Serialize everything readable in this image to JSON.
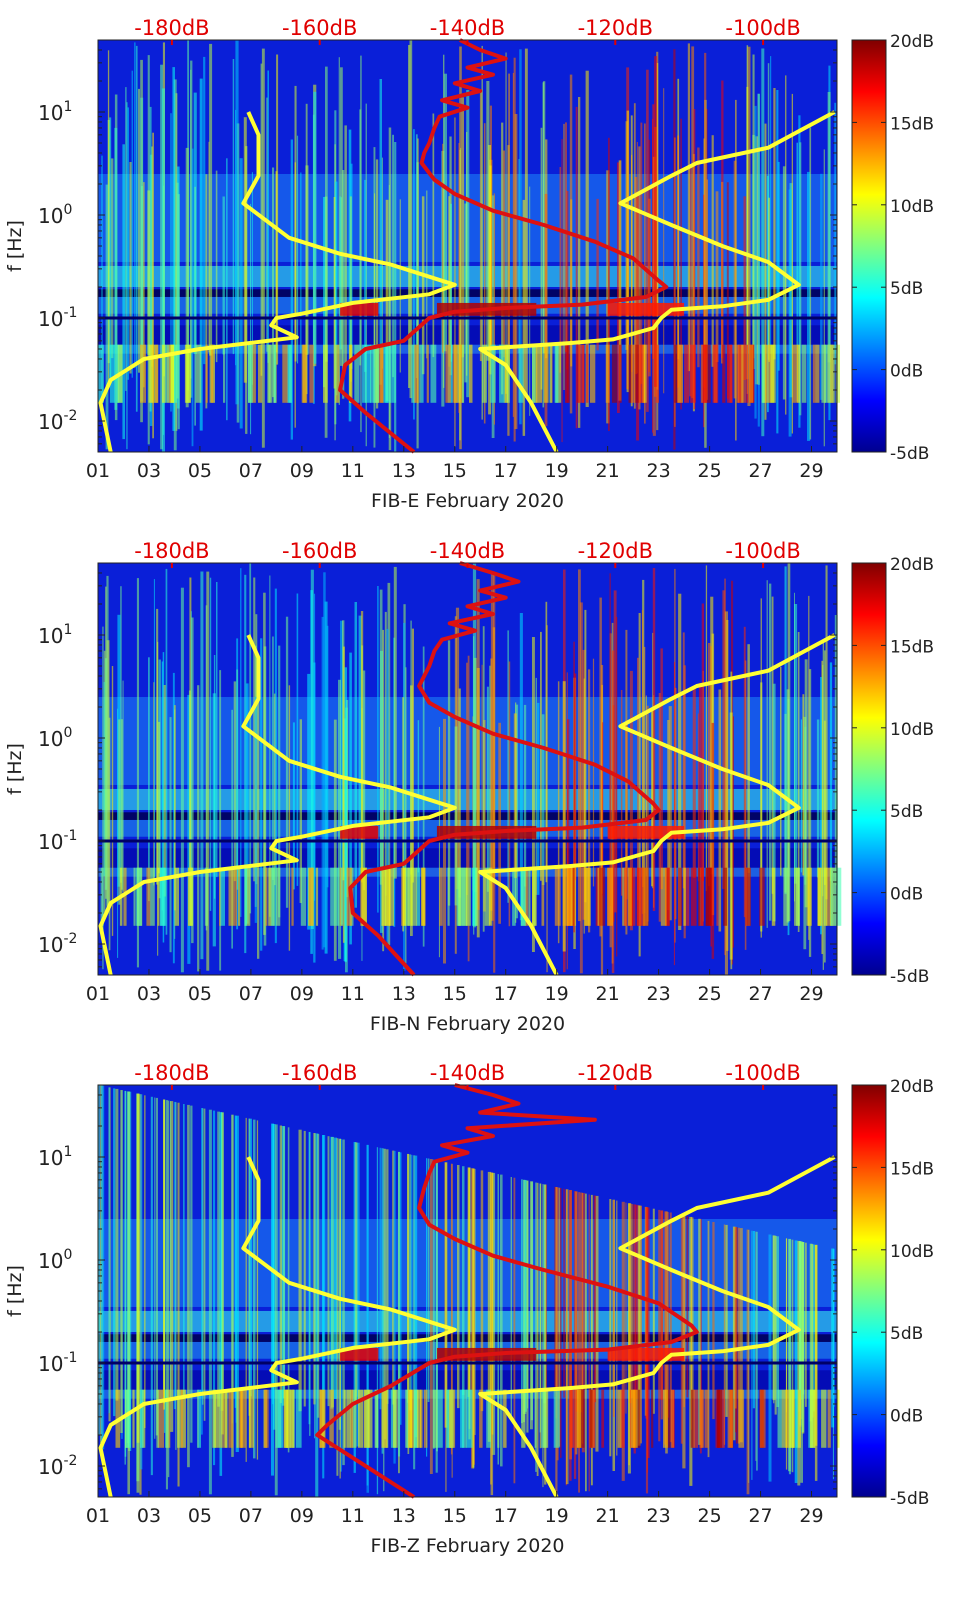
{
  "chart_data": [
    {
      "type": "heatmap",
      "title": "",
      "xlabel": "FIB-E February 2020",
      "ylabel": "f [Hz]",
      "x_ticks": [
        "01",
        "03",
        "05",
        "07",
        "09",
        "11",
        "13",
        "15",
        "17",
        "19",
        "21",
        "23",
        "25",
        "27",
        "29"
      ],
      "xlim": [
        1,
        30
      ],
      "y_scale": "log",
      "ylim": [
        0.005,
        50
      ],
      "y_ticks": [
        {
          "value": 0.01,
          "base": "10",
          "exp": "-2"
        },
        {
          "value": 0.1,
          "base": "10",
          "exp": "-1"
        },
        {
          "value": 1,
          "base": "10",
          "exp": "0"
        },
        {
          "value": 10,
          "base": "10",
          "exp": "1"
        }
      ],
      "colorbar": {
        "ticks": [
          "20dB",
          "15dB",
          "10dB",
          "5dB",
          "0dB",
          "-5dB"
        ],
        "range": [
          -5,
          20
        ],
        "colormap": "jet"
      },
      "top_axis": {
        "color": "#e00000",
        "ticks": [
          "-180dB",
          "-160dB",
          "-140dB",
          "-120dB",
          "-100dB"
        ],
        "range": [
          -190,
          -90
        ]
      },
      "series": [
        {
          "color": "#ffff33",
          "points": [
            [
              6.9,
              10
            ],
            [
              7.3,
              6
            ],
            [
              7.3,
              2.4
            ],
            [
              6.7,
              1.3
            ],
            [
              8.5,
              0.6
            ],
            [
              10.5,
              0.42
            ],
            [
              12.5,
              0.33
            ],
            [
              15,
              0.21
            ],
            [
              14,
              0.17
            ],
            [
              11,
              0.14
            ],
            [
              9,
              0.11
            ],
            [
              8,
              0.1
            ],
            [
              7.8,
              0.085
            ],
            [
              8.8,
              0.065
            ],
            [
              5,
              0.05
            ],
            [
              2.8,
              0.04
            ],
            [
              1.5,
              0.025
            ],
            [
              1.1,
              0.015
            ],
            [
              1.5,
              0.005
            ]
          ]
        },
        {
          "color": "#ffff33",
          "points": [
            [
              29.9,
              10
            ],
            [
              27.3,
              4.5
            ],
            [
              24.5,
              3.2
            ],
            [
              23.5,
              2.4
            ],
            [
              21.5,
              1.3
            ],
            [
              23.5,
              0.8
            ],
            [
              25.5,
              0.5
            ],
            [
              27.3,
              0.35
            ],
            [
              28.5,
              0.21
            ],
            [
              27.3,
              0.15
            ],
            [
              25.5,
              0.13
            ],
            [
              23.5,
              0.12
            ],
            [
              23.1,
              0.1
            ],
            [
              22.8,
              0.08
            ],
            [
              21.2,
              0.062
            ],
            [
              19.5,
              0.057
            ],
            [
              16,
              0.05
            ],
            [
              17,
              0.035
            ],
            [
              18,
              0.015
            ],
            [
              19,
              0.005
            ]
          ]
        },
        {
          "color": "#dd1111",
          "points": [
            [
              15.2,
              50
            ],
            [
              16,
              40
            ],
            [
              17,
              33
            ],
            [
              15.5,
              27
            ],
            [
              16.5,
              23
            ],
            [
              15,
              19
            ],
            [
              16,
              16
            ],
            [
              14.5,
              13
            ],
            [
              15.5,
              11
            ],
            [
              14.4,
              9
            ],
            [
              14.2,
              7
            ],
            [
              14,
              5
            ],
            [
              13.8,
              4
            ],
            [
              13.7,
              3.2
            ],
            [
              14.2,
              2.2
            ],
            [
              15,
              1.6
            ],
            [
              16.5,
              1.1
            ],
            [
              18.5,
              0.8
            ],
            [
              20.5,
              0.55
            ],
            [
              22,
              0.38
            ],
            [
              23,
              0.23
            ],
            [
              23.3,
              0.2
            ],
            [
              22.5,
              0.16
            ],
            [
              20,
              0.135
            ],
            [
              17,
              0.125
            ],
            [
              15,
              0.115
            ],
            [
              14,
              0.1
            ],
            [
              13,
              0.06
            ],
            [
              11.5,
              0.05
            ],
            [
              10.7,
              0.035
            ],
            [
              10.5,
              0.02
            ],
            [
              11.5,
              0.012
            ],
            [
              13.4,
              0.005
            ]
          ]
        }
      ]
    },
    {
      "type": "heatmap",
      "title": "",
      "xlabel": "FIB-N February 2020",
      "ylabel": "f [Hz]",
      "x_ticks": [
        "01",
        "03",
        "05",
        "07",
        "09",
        "11",
        "13",
        "15",
        "17",
        "19",
        "21",
        "23",
        "25",
        "27",
        "29"
      ],
      "xlim": [
        1,
        30
      ],
      "y_scale": "log",
      "ylim": [
        0.005,
        50
      ],
      "y_ticks": [
        {
          "value": 0.01,
          "base": "10",
          "exp": "-2"
        },
        {
          "value": 0.1,
          "base": "10",
          "exp": "-1"
        },
        {
          "value": 1,
          "base": "10",
          "exp": "0"
        },
        {
          "value": 10,
          "base": "10",
          "exp": "1"
        }
      ],
      "colorbar": {
        "ticks": [
          "20dB",
          "15dB",
          "10dB",
          "5dB",
          "0dB",
          "-5dB"
        ],
        "range": [
          -5,
          20
        ],
        "colormap": "jet"
      },
      "top_axis": {
        "color": "#e00000",
        "ticks": [
          "-180dB",
          "-160dB",
          "-140dB",
          "-120dB",
          "-100dB"
        ],
        "range": [
          -190,
          -90
        ]
      },
      "series": [
        {
          "color": "#ffff33",
          "points": [
            [
              6.9,
              10
            ],
            [
              7.3,
              6
            ],
            [
              7.3,
              2.4
            ],
            [
              6.7,
              1.3
            ],
            [
              8.5,
              0.6
            ],
            [
              10.5,
              0.42
            ],
            [
              12.5,
              0.33
            ],
            [
              15,
              0.21
            ],
            [
              14,
              0.17
            ],
            [
              11,
              0.14
            ],
            [
              9,
              0.11
            ],
            [
              8,
              0.1
            ],
            [
              7.8,
              0.085
            ],
            [
              8.8,
              0.065
            ],
            [
              5,
              0.05
            ],
            [
              2.8,
              0.04
            ],
            [
              1.5,
              0.025
            ],
            [
              1.1,
              0.015
            ],
            [
              1.5,
              0.005
            ]
          ]
        },
        {
          "color": "#ffff33",
          "points": [
            [
              29.9,
              10
            ],
            [
              27.3,
              4.5
            ],
            [
              24.5,
              3.2
            ],
            [
              23.5,
              2.4
            ],
            [
              21.5,
              1.3
            ],
            [
              23.5,
              0.8
            ],
            [
              25.5,
              0.5
            ],
            [
              27.3,
              0.35
            ],
            [
              28.5,
              0.21
            ],
            [
              27.3,
              0.15
            ],
            [
              25.5,
              0.13
            ],
            [
              23.5,
              0.12
            ],
            [
              23.1,
              0.1
            ],
            [
              22.8,
              0.08
            ],
            [
              21.2,
              0.062
            ],
            [
              19.5,
              0.057
            ],
            [
              16,
              0.05
            ],
            [
              17,
              0.035
            ],
            [
              18,
              0.015
            ],
            [
              19,
              0.005
            ]
          ]
        },
        {
          "color": "#dd1111",
          "points": [
            [
              15.2,
              50
            ],
            [
              16.5,
              40
            ],
            [
              17.5,
              33
            ],
            [
              16,
              27
            ],
            [
              17,
              23
            ],
            [
              15.5,
              19
            ],
            [
              16.5,
              16
            ],
            [
              14.8,
              13
            ],
            [
              15.8,
              11
            ],
            [
              14.5,
              9
            ],
            [
              14.2,
              7
            ],
            [
              14,
              5
            ],
            [
              13.8,
              4
            ],
            [
              13.6,
              3.2
            ],
            [
              14,
              2.2
            ],
            [
              15,
              1.6
            ],
            [
              16.5,
              1.1
            ],
            [
              18.5,
              0.8
            ],
            [
              20.5,
              0.55
            ],
            [
              21.8,
              0.38
            ],
            [
              22.8,
              0.23
            ],
            [
              23,
              0.2
            ],
            [
              22.5,
              0.16
            ],
            [
              20,
              0.135
            ],
            [
              17,
              0.125
            ],
            [
              15,
              0.115
            ],
            [
              14,
              0.1
            ],
            [
              13,
              0.06
            ],
            [
              11.5,
              0.05
            ],
            [
              10.9,
              0.035
            ],
            [
              11,
              0.02
            ],
            [
              12,
              0.012
            ],
            [
              13.4,
              0.005
            ]
          ]
        }
      ]
    },
    {
      "type": "heatmap",
      "title": "",
      "xlabel": "FIB-Z February 2020",
      "ylabel": "f [Hz]",
      "x_ticks": [
        "01",
        "03",
        "05",
        "07",
        "09",
        "11",
        "13",
        "15",
        "17",
        "19",
        "21",
        "23",
        "25",
        "27",
        "29"
      ],
      "xlim": [
        1,
        30
      ],
      "y_scale": "log",
      "ylim": [
        0.005,
        50
      ],
      "y_ticks": [
        {
          "value": 0.01,
          "base": "10",
          "exp": "-2"
        },
        {
          "value": 0.1,
          "base": "10",
          "exp": "-1"
        },
        {
          "value": 1,
          "base": "10",
          "exp": "0"
        },
        {
          "value": 10,
          "base": "10",
          "exp": "1"
        }
      ],
      "colorbar": {
        "ticks": [
          "20dB",
          "15dB",
          "10dB",
          "5dB",
          "0dB",
          "-5dB"
        ],
        "range": [
          -5,
          20
        ],
        "colormap": "jet"
      },
      "top_axis": {
        "color": "#e00000",
        "ticks": [
          "-180dB",
          "-160dB",
          "-140dB",
          "-120dB",
          "-100dB"
        ],
        "range": [
          -190,
          -90
        ]
      },
      "series": [
        {
          "color": "#ffff33",
          "points": [
            [
              6.9,
              10
            ],
            [
              7.3,
              6
            ],
            [
              7.3,
              2.4
            ],
            [
              6.7,
              1.3
            ],
            [
              8.5,
              0.6
            ],
            [
              10.5,
              0.42
            ],
            [
              12.5,
              0.33
            ],
            [
              15,
              0.21
            ],
            [
              14,
              0.17
            ],
            [
              11,
              0.14
            ],
            [
              9,
              0.11
            ],
            [
              8,
              0.1
            ],
            [
              7.8,
              0.085
            ],
            [
              8.8,
              0.065
            ],
            [
              5,
              0.05
            ],
            [
              2.8,
              0.04
            ],
            [
              1.5,
              0.025
            ],
            [
              1.1,
              0.015
            ],
            [
              1.5,
              0.005
            ]
          ]
        },
        {
          "color": "#ffff33",
          "points": [
            [
              29.9,
              10
            ],
            [
              27.3,
              4.5
            ],
            [
              24.5,
              3.2
            ],
            [
              23.5,
              2.4
            ],
            [
              21.5,
              1.3
            ],
            [
              23.5,
              0.8
            ],
            [
              25.5,
              0.5
            ],
            [
              27.3,
              0.35
            ],
            [
              28.5,
              0.21
            ],
            [
              27.3,
              0.15
            ],
            [
              25.5,
              0.13
            ],
            [
              23.5,
              0.12
            ],
            [
              23.1,
              0.1
            ],
            [
              22.8,
              0.08
            ],
            [
              21.2,
              0.062
            ],
            [
              19.5,
              0.057
            ],
            [
              16,
              0.05
            ],
            [
              17,
              0.035
            ],
            [
              18,
              0.015
            ],
            [
              19,
              0.005
            ]
          ]
        },
        {
          "color": "#dd1111",
          "points": [
            [
              15,
              50
            ],
            [
              16.5,
              40
            ],
            [
              17.5,
              33
            ],
            [
              16,
              27
            ],
            [
              20.5,
              23
            ],
            [
              15.5,
              19
            ],
            [
              16.5,
              16
            ],
            [
              14.5,
              13
            ],
            [
              15.5,
              11
            ],
            [
              14.2,
              9
            ],
            [
              14,
              7
            ],
            [
              13.8,
              5
            ],
            [
              13.7,
              4
            ],
            [
              13.6,
              3.2
            ],
            [
              14,
              2.2
            ],
            [
              15,
              1.6
            ],
            [
              16.5,
              1.1
            ],
            [
              18.5,
              0.8
            ],
            [
              21,
              0.55
            ],
            [
              23,
              0.38
            ],
            [
              24.3,
              0.23
            ],
            [
              24.5,
              0.2
            ],
            [
              23.5,
              0.16
            ],
            [
              21,
              0.135
            ],
            [
              17,
              0.125
            ],
            [
              15,
              0.115
            ],
            [
              14,
              0.1
            ],
            [
              12.5,
              0.06
            ],
            [
              11,
              0.04
            ],
            [
              10,
              0.025
            ],
            [
              9.6,
              0.02
            ],
            [
              11,
              0.012
            ],
            [
              13.4,
              0.005
            ]
          ]
        }
      ]
    }
  ]
}
